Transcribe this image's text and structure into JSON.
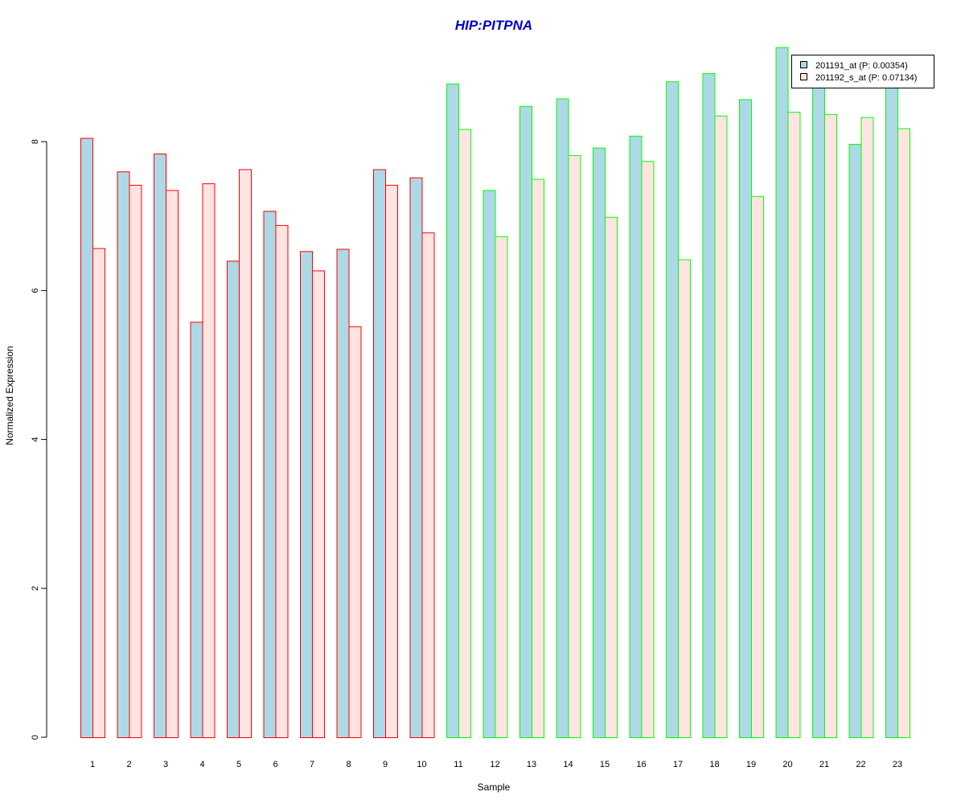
{
  "chart_data": {
    "type": "bar",
    "title": "HIP:PITPNA",
    "xlabel": "Sample",
    "ylabel": "Normalized Expression",
    "ylim": [
      0,
      9.3
    ],
    "yticks": [
      0,
      2,
      4,
      6,
      8
    ],
    "grid": false,
    "legend_position": "top-right",
    "categories": [
      "1",
      "2",
      "3",
      "4",
      "5",
      "6",
      "7",
      "8",
      "9",
      "10",
      "11",
      "12",
      "13",
      "14",
      "15",
      "16",
      "17",
      "18",
      "19",
      "20",
      "21",
      "22",
      "23"
    ],
    "group_of_category": [
      "red",
      "red",
      "red",
      "red",
      "red",
      "red",
      "red",
      "red",
      "red",
      "red",
      "green",
      "green",
      "green",
      "green",
      "green",
      "green",
      "green",
      "green",
      "green",
      "green",
      "green",
      "green",
      "green"
    ],
    "series": [
      {
        "name": "201191_at (P: 0.00354)",
        "values": [
          8.05,
          7.6,
          7.84,
          5.58,
          6.4,
          7.07,
          6.53,
          6.56,
          7.63,
          7.52,
          8.78,
          7.35,
          8.48,
          8.58,
          7.92,
          8.08,
          8.81,
          8.92,
          8.57,
          9.27,
          8.73,
          7.97,
          8.74
        ],
        "fill": "#add8e6"
      },
      {
        "name": "201192_s_at (P: 0.07134)",
        "values": [
          6.57,
          7.42,
          7.35,
          7.44,
          7.63,
          6.88,
          6.27,
          5.52,
          7.42,
          6.78,
          8.17,
          6.73,
          7.5,
          7.82,
          6.99,
          7.74,
          6.42,
          8.35,
          7.27,
          8.4,
          8.37,
          8.33,
          8.18
        ],
        "fill": "#ffe4e1"
      }
    ],
    "group_border_colors": {
      "red": "#ff0000",
      "green": "#00ff00"
    },
    "title_color": "#0000cd"
  }
}
